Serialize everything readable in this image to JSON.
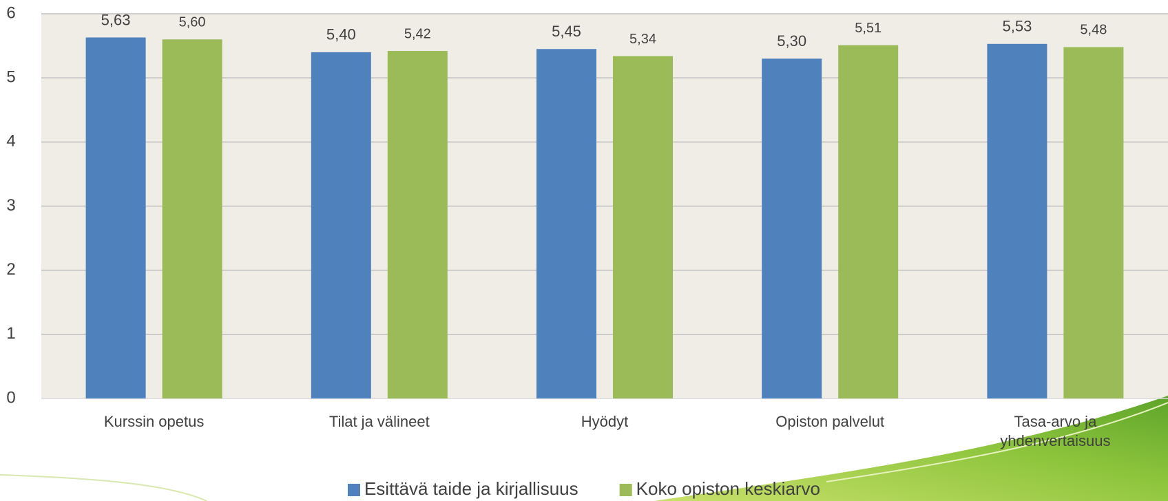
{
  "chart_data": {
    "type": "bar",
    "categories": [
      "Kurssin opetus",
      "Tilat ja välineet",
      "Hyödyt",
      "Opiston palvelut",
      "Tasa-arvo ja yhdenvertaisuus"
    ],
    "series": [
      {
        "name": "Esittävä taide ja kirjallisuus",
        "color": "#4f81bd",
        "values": [
          5.63,
          5.4,
          5.45,
          5.3,
          5.53
        ],
        "value_labels": [
          "5,63",
          "5,40",
          "5,45",
          "5,30",
          "5,53"
        ]
      },
      {
        "name": "Koko opiston keskiarvo",
        "color": "#9bbb59",
        "values": [
          5.6,
          5.42,
          5.34,
          5.51,
          5.48
        ],
        "value_labels": [
          "5,60",
          "5,42",
          "5,34",
          "5,51",
          "5,48"
        ]
      }
    ],
    "ylim": [
      0,
      6
    ],
    "yticks": [
      0,
      1,
      2,
      3,
      4,
      5,
      6
    ],
    "grid": true,
    "legend": "bottom"
  }
}
